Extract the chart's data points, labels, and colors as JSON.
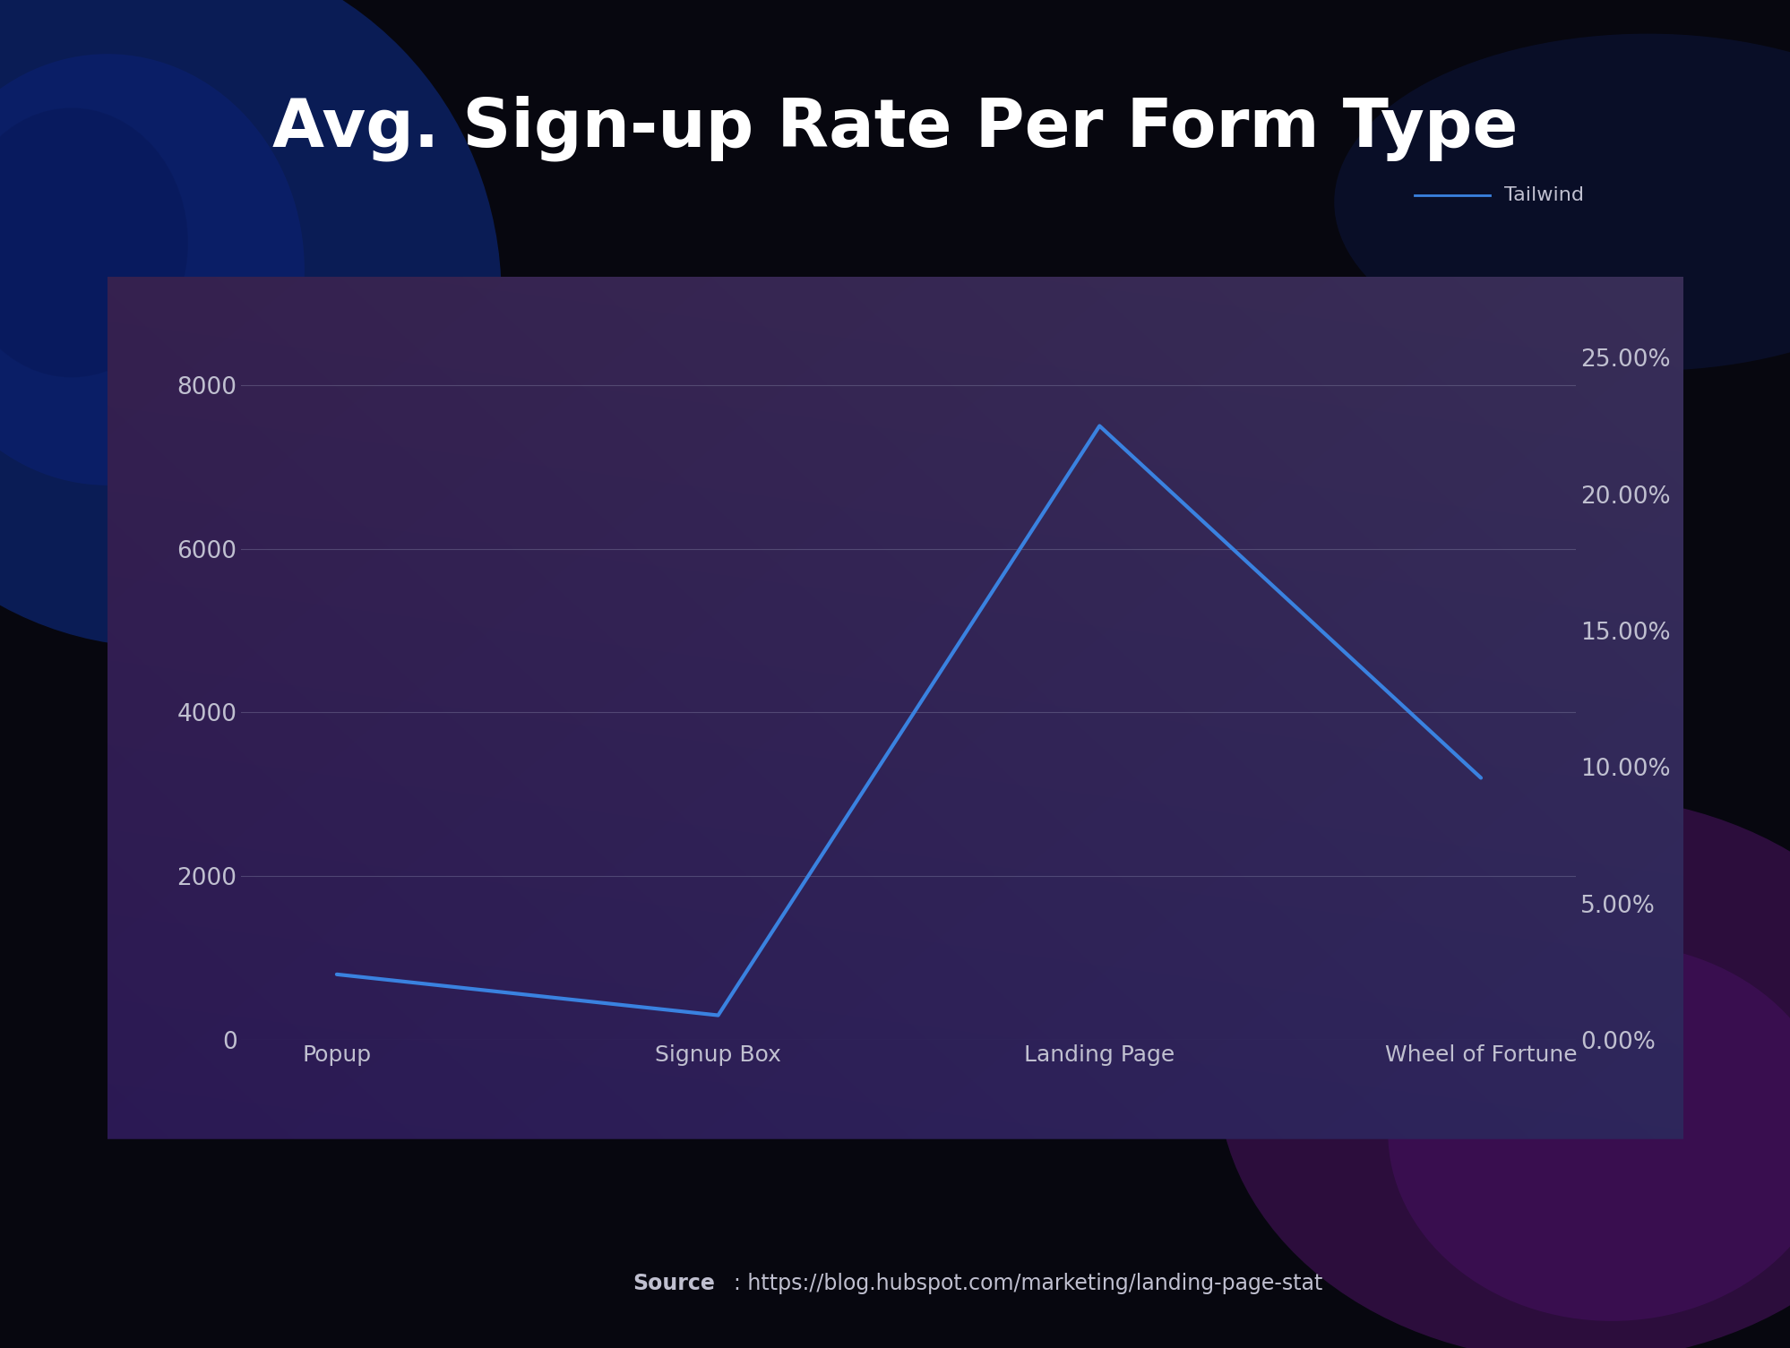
{
  "title": "Avg. Sign-up Rate Per Form Type",
  "categories": [
    "Popup",
    "Signup Box",
    "Landing Page",
    "Wheel of Fortune"
  ],
  "values": [
    800,
    300,
    7500,
    3200
  ],
  "right_axis_ticks": [
    0,
    1666.67,
    3333.33,
    5000,
    6666.67,
    8333.33
  ],
  "right_axis_labels": [
    "0.00%",
    "5.00%",
    "10.00%",
    "15.00%",
    "20.00%",
    "25.00%"
  ],
  "ylim": [
    0,
    8800
  ],
  "yticks": [
    0,
    2000,
    4000,
    6000,
    8000
  ],
  "line_color": "#3a82e0",
  "line_width": 3.0,
  "legend_label": "Tailwind",
  "source_bold": "Source",
  "source_regular": ": https://blog.hubspot.com/marketing/landing-page-stat",
  "outer_bg": "#07070f",
  "title_color": "#ffffff",
  "title_fontsize": 54,
  "tick_color": "#c0c0d0",
  "grid_color": "#9090b0",
  "grid_alpha": 0.35,
  "grid_linewidth": 0.8,
  "source_color": "#c0c0d0",
  "source_fontsize": 17,
  "legend_color": "#c0c0d0",
  "legend_fontsize": 16,
  "tick_fontsize": 19,
  "xtick_fontsize": 18,
  "chart_facecolor": "#252248"
}
